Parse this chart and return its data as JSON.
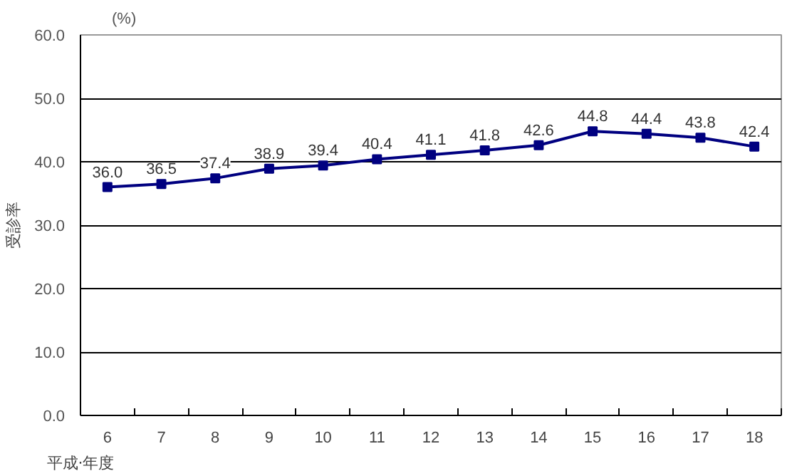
{
  "chart_data": {
    "type": "line",
    "categories": [
      "6",
      "7",
      "8",
      "9",
      "10",
      "11",
      "12",
      "13",
      "14",
      "15",
      "16",
      "17",
      "18"
    ],
    "series": [
      {
        "color": "#000080",
        "values": [
          36.0,
          36.5,
          37.4,
          38.9,
          39.4,
          40.4,
          41.1,
          41.8,
          42.6,
          44.8,
          44.4,
          43.8,
          42.4
        ]
      }
    ],
    "xlabel": "平成·年度",
    "ylabel": "受診率",
    "annotations": [
      "(%)"
    ],
    "ylim": [
      0,
      60
    ],
    "yticks": [
      {
        "value": 0,
        "label": "0.0"
      },
      {
        "value": 10,
        "label": "10.0"
      },
      {
        "value": 20,
        "label": "20.0"
      },
      {
        "value": 30,
        "label": "30.0"
      },
      {
        "value": 40,
        "label": "40.0"
      },
      {
        "value": 50,
        "label": "50.0"
      },
      {
        "value": 60,
        "label": "60.0"
      }
    ],
    "value_labels": [
      "36.0",
      "36.5",
      "37.4",
      "38.9",
      "39.4",
      "40.4",
      "41.1",
      "41.8",
      "42.6",
      "44.8",
      "44.4",
      "43.8",
      "42.4"
    ],
    "grid": "y",
    "marker": "square",
    "line_style": "solid"
  }
}
